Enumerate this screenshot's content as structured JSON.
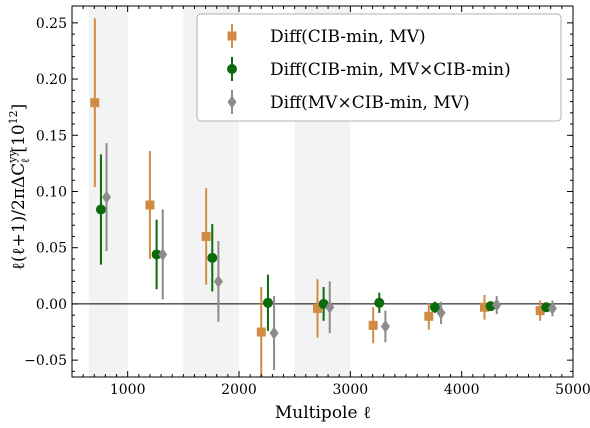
{
  "chart_data": {
    "type": "scatter",
    "xlabel": "Multipole ℓ",
    "ylabel_parts": {
      "main": "ℓ(ℓ+1)/2πΔC",
      "sub": "ℓ",
      "sup": "yy",
      "unit_base": " [10",
      "unit_exp": "12",
      "unit_close": "]"
    },
    "xlim": [
      500,
      5000
    ],
    "ylim": [
      -0.065,
      0.265
    ],
    "xticks": [
      1000,
      2000,
      3000,
      4000,
      5000
    ],
    "yticks": [
      -0.05,
      0.0,
      0.05,
      0.1,
      0.15,
      0.2,
      0.25
    ],
    "xtick_labels": [
      "1000",
      "2000",
      "3000",
      "4000",
      "5000"
    ],
    "ytick_labels": [
      "−0.05",
      "0.00",
      "0.05",
      "0.10",
      "0.15",
      "0.20",
      "0.25"
    ],
    "shaded_bands": [
      [
        650,
        1000
      ],
      [
        1500,
        2000
      ],
      [
        2500,
        3000
      ]
    ],
    "zero_line": true,
    "legend_position": "top-right",
    "series": [
      {
        "name": "Diff(CIB-min, MV)",
        "color": "#d08c45",
        "marker": "square",
        "points": [
          {
            "x": 705,
            "y": 0.179,
            "err": 0.075
          },
          {
            "x": 1200,
            "y": 0.088,
            "err": 0.048
          },
          {
            "x": 1705,
            "y": 0.06,
            "err": 0.043
          },
          {
            "x": 2200,
            "y": -0.025,
            "err": 0.04
          },
          {
            "x": 2705,
            "y": -0.004,
            "err": 0.026
          },
          {
            "x": 3205,
            "y": -0.019,
            "err": 0.016
          },
          {
            "x": 3705,
            "y": -0.011,
            "err": 0.012
          },
          {
            "x": 4205,
            "y": -0.003,
            "err": 0.011
          },
          {
            "x": 4705,
            "y": -0.006,
            "err": 0.009
          }
        ]
      },
      {
        "name": "Diff(CIB-min, MV×CIB-min)",
        "color": "#0b6b0b",
        "marker": "circle",
        "points": [
          {
            "x": 760,
            "y": 0.084,
            "err": 0.049
          },
          {
            "x": 1260,
            "y": 0.044,
            "err": 0.031
          },
          {
            "x": 1760,
            "y": 0.041,
            "err": 0.03
          },
          {
            "x": 2260,
            "y": 0.001,
            "err": 0.025
          },
          {
            "x": 2760,
            "y": 0.0,
            "err": 0.015
          },
          {
            "x": 3260,
            "y": 0.001,
            "err": 0.009
          },
          {
            "x": 3760,
            "y": -0.003,
            "err": 0.005
          },
          {
            "x": 4260,
            "y": -0.002,
            "err": 0.004
          },
          {
            "x": 4760,
            "y": -0.003,
            "err": 0.003
          }
        ]
      },
      {
        "name": "Diff(MV×CIB-min, MV)",
        "color": "#8c8c8c",
        "marker": "diamond",
        "points": [
          {
            "x": 810,
            "y": 0.095,
            "err": 0.048
          },
          {
            "x": 1315,
            "y": 0.044,
            "err": 0.04
          },
          {
            "x": 1815,
            "y": 0.02,
            "err": 0.036
          },
          {
            "x": 2315,
            "y": -0.026,
            "err": 0.033
          },
          {
            "x": 2815,
            "y": -0.003,
            "err": 0.023
          },
          {
            "x": 3315,
            "y": -0.02,
            "err": 0.014
          },
          {
            "x": 3815,
            "y": -0.008,
            "err": 0.01
          },
          {
            "x": 4315,
            "y": -0.001,
            "err": 0.008
          },
          {
            "x": 4815,
            "y": -0.004,
            "err": 0.007
          }
        ]
      }
    ]
  }
}
